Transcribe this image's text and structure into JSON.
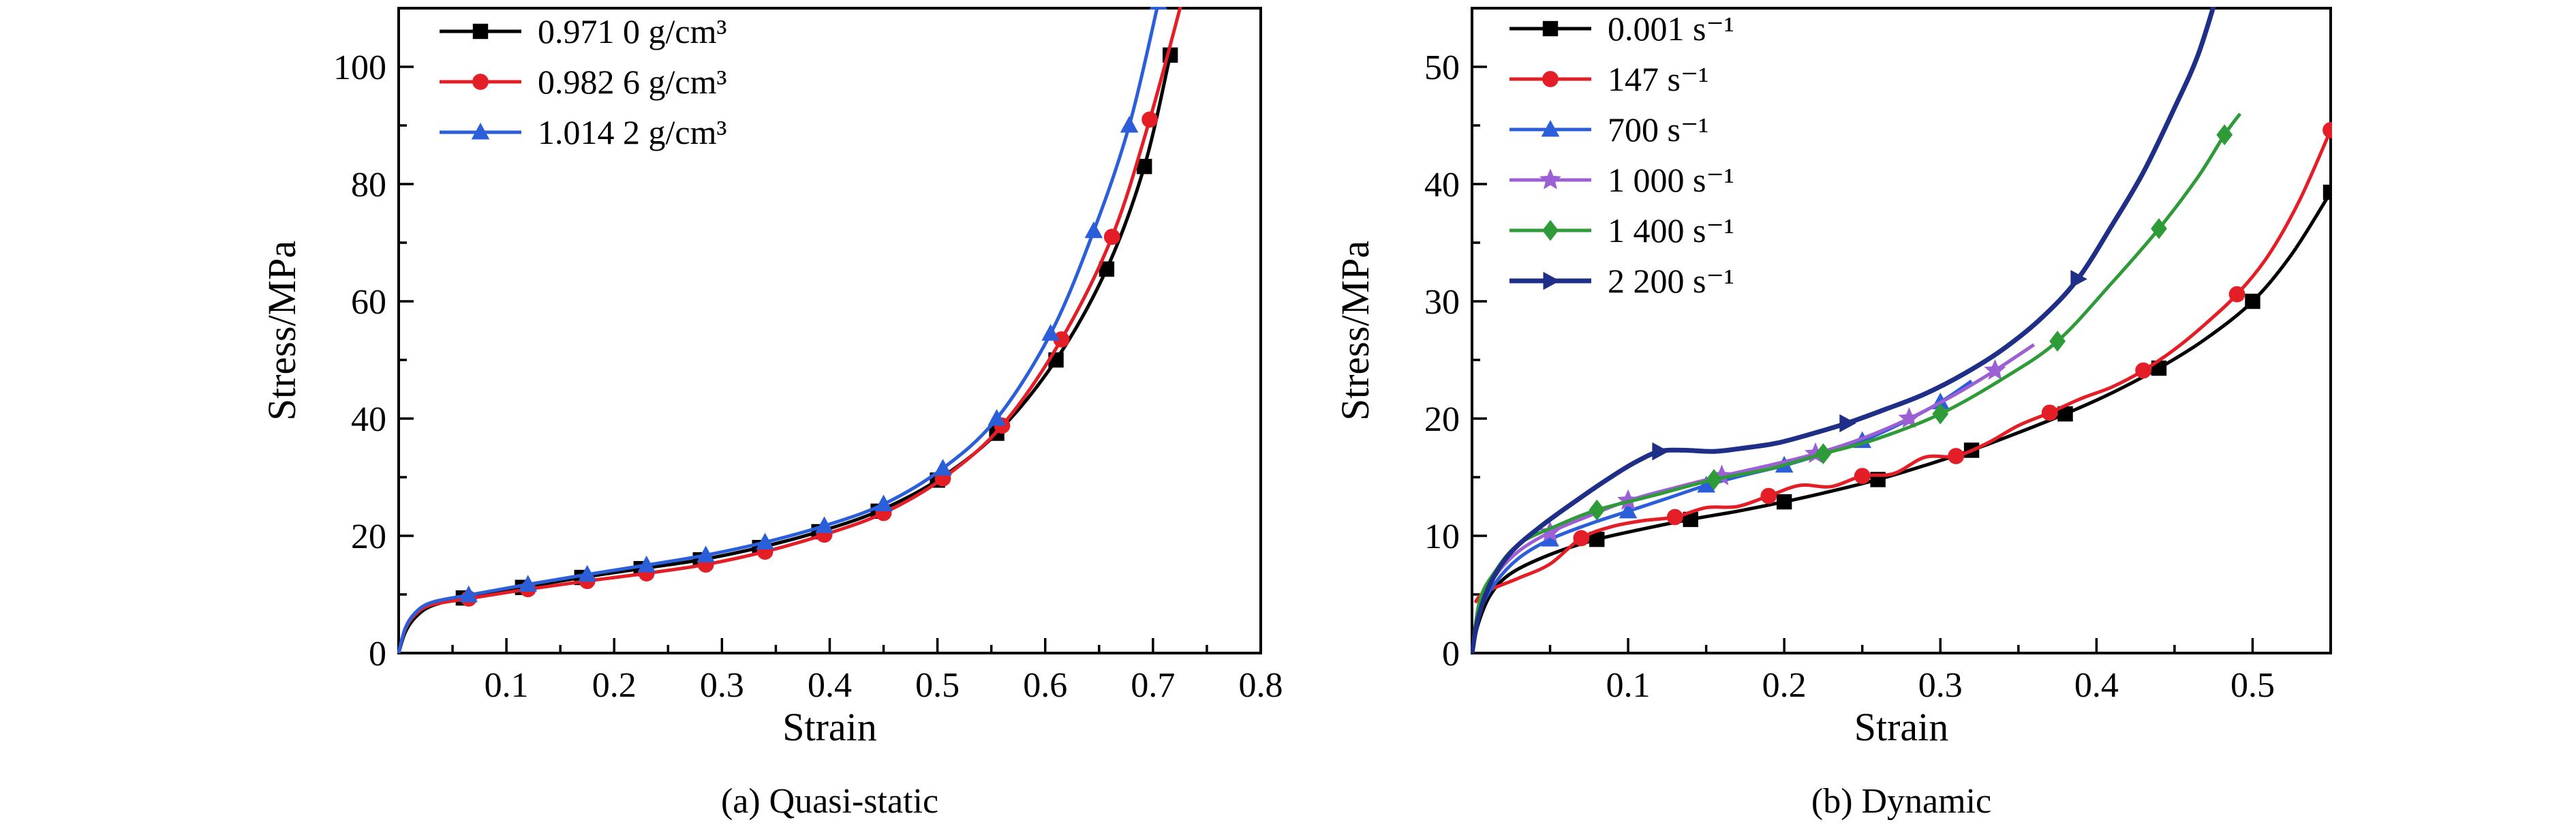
{
  "page": {
    "background": "#ffffff"
  },
  "chart_data": [
    {
      "id": "quasi-static",
      "type": "line",
      "caption": "(a) Quasi-static",
      "xlabel": "Strain",
      "ylabel": "Stress/MPa",
      "xlim": [
        0,
        0.8
      ],
      "ylim": [
        0,
        110
      ],
      "xticks": {
        "values": [
          0.1,
          0.2,
          0.3,
          0.4,
          0.5,
          0.6,
          0.7,
          0.8
        ],
        "labels": [
          "0.1",
          "0.2",
          "0.3",
          "0.4",
          "0.5",
          "0.6",
          "0.7",
          "0.8"
        ]
      },
      "yticks": {
        "values": [
          0,
          20,
          40,
          60,
          80,
          100
        ],
        "labels": [
          "0",
          "20",
          "40",
          "60",
          "80",
          "100"
        ]
      },
      "x_minor_step": 0.05,
      "y_minor_step": 10,
      "legend_position": "top-left",
      "grid": false,
      "series": [
        {
          "name": "0.971 0 g/cm³",
          "color": "#000000",
          "marker": "square",
          "line_width": 5,
          "markers_from": 4,
          "marker_every": 1,
          "x": [
            0,
            0.006,
            0.015,
            0.03,
            0.06,
            0.115,
            0.17,
            0.225,
            0.28,
            0.335,
            0.39,
            0.445,
            0.5,
            0.555,
            0.61,
            0.657,
            0.692,
            0.716
          ],
          "y": [
            0,
            3.5,
            6.0,
            8.0,
            9.4,
            11.2,
            12.9,
            14.4,
            15.9,
            18.0,
            20.7,
            24.2,
            29.5,
            37.5,
            50.0,
            65.5,
            83.0,
            102.0
          ]
        },
        {
          "name": "0.982 6 g/cm³",
          "color": "#e41e26",
          "marker": "circle",
          "line_width": 5,
          "markers_from": 4,
          "marker_every": 1,
          "x": [
            0,
            0.006,
            0.015,
            0.03,
            0.065,
            0.12,
            0.175,
            0.23,
            0.285,
            0.34,
            0.395,
            0.45,
            0.505,
            0.56,
            0.615,
            0.662,
            0.697,
            0.728
          ],
          "y": [
            0,
            4.0,
            6.5,
            8.2,
            9.3,
            10.9,
            12.3,
            13.6,
            15.1,
            17.3,
            20.2,
            23.9,
            29.8,
            38.8,
            53.5,
            71.0,
            91.0,
            112.0
          ]
        },
        {
          "name": "1.014 2 g/cm³",
          "color": "#2b5fd9",
          "marker": "triangle-up",
          "line_width": 5,
          "markers_from": 4,
          "marker_every": 1,
          "x": [
            0,
            0.006,
            0.015,
            0.03,
            0.065,
            0.12,
            0.175,
            0.23,
            0.285,
            0.34,
            0.395,
            0.45,
            0.505,
            0.555,
            0.605,
            0.645,
            0.678,
            0.705
          ],
          "y": [
            0,
            4.2,
            6.8,
            8.6,
            9.9,
            11.7,
            13.4,
            15.0,
            16.7,
            18.9,
            21.7,
            25.4,
            31.5,
            40.0,
            54.5,
            72.0,
            90.0,
            111.0
          ]
        }
      ]
    },
    {
      "id": "dynamic",
      "type": "line",
      "caption": "(b) Dynamic",
      "xlabel": "Strain",
      "ylabel": "Stress/MPa",
      "xlim": [
        0,
        0.55
      ],
      "ylim": [
        0,
        55
      ],
      "xticks": {
        "values": [
          0.1,
          0.2,
          0.3,
          0.4,
          0.5
        ],
        "labels": [
          "0.1",
          "0.2",
          "0.3",
          "0.4",
          "0.5"
        ]
      },
      "yticks": {
        "values": [
          0,
          10,
          20,
          30,
          40,
          50
        ],
        "labels": [
          "0",
          "10",
          "20",
          "30",
          "40",
          "50"
        ]
      },
      "x_minor_step": 0.05,
      "y_minor_step": 5,
      "legend_position": "top-left",
      "grid": false,
      "series": [
        {
          "name": "0.001 s⁻¹",
          "color": "#000000",
          "marker": "square",
          "line_width": 5,
          "markers_from": 5,
          "marker_every": 2,
          "x": [
            0,
            0.004,
            0.012,
            0.025,
            0.05,
            0.08,
            0.11,
            0.14,
            0.17,
            0.2,
            0.23,
            0.26,
            0.29,
            0.32,
            0.35,
            0.38,
            0.41,
            0.44,
            0.47,
            0.5,
            0.525,
            0.55
          ],
          "y": [
            0,
            2.5,
            5.0,
            6.8,
            8.4,
            9.7,
            10.6,
            11.4,
            12.1,
            12.9,
            13.8,
            14.8,
            16.0,
            17.3,
            18.8,
            20.4,
            22.2,
            24.3,
            26.8,
            30.0,
            34.0,
            39.3
          ]
        },
        {
          "name": "147 s⁻¹",
          "color": "#e41e26",
          "marker": "circle",
          "line_width": 5,
          "markers_from": 5,
          "marker_every": 3,
          "x": [
            0.002,
            0.006,
            0.015,
            0.03,
            0.05,
            0.07,
            0.09,
            0.11,
            0.13,
            0.15,
            0.17,
            0.19,
            0.21,
            0.23,
            0.25,
            0.27,
            0.29,
            0.31,
            0.33,
            0.35,
            0.37,
            0.39,
            0.41,
            0.43,
            0.45,
            0.47,
            0.49,
            0.51,
            0.53,
            0.55
          ],
          "y": [
            4.3,
            5.0,
            5.6,
            6.4,
            7.6,
            9.8,
            10.8,
            11.3,
            11.6,
            12.4,
            12.5,
            13.4,
            14.3,
            14.2,
            15.1,
            15.3,
            16.7,
            16.8,
            17.9,
            19.4,
            20.5,
            21.7,
            22.7,
            24.1,
            25.9,
            28.1,
            30.6,
            33.9,
            38.6,
            44.6
          ]
        },
        {
          "name": "700 s⁻¹",
          "color": "#2b5fd9",
          "marker": "triangle-up",
          "line_width": 5,
          "markers_from": 4,
          "marker_every": 2,
          "x": [
            0,
            0.005,
            0.015,
            0.03,
            0.05,
            0.075,
            0.1,
            0.125,
            0.15,
            0.175,
            0.2,
            0.225,
            0.25,
            0.275,
            0.3,
            0.32
          ],
          "y": [
            0,
            3.5,
            6.0,
            8.1,
            9.7,
            11.0,
            12.1,
            13.2,
            14.3,
            15.2,
            16.0,
            17.0,
            18.1,
            19.6,
            21.4,
            23.2
          ]
        },
        {
          "name": "1 000 s⁻¹",
          "color": "#9d5fd4",
          "marker": "star",
          "line_width": 5,
          "markers_from": 4,
          "marker_every": 2,
          "x": [
            0,
            0.005,
            0.015,
            0.03,
            0.05,
            0.075,
            0.1,
            0.13,
            0.16,
            0.19,
            0.22,
            0.25,
            0.28,
            0.31,
            0.335,
            0.36
          ],
          "y": [
            0,
            4.0,
            6.6,
            8.7,
            10.3,
            11.7,
            13.0,
            14.1,
            15.1,
            16.0,
            17.0,
            18.3,
            20.0,
            22.1,
            24.1,
            26.3
          ]
        },
        {
          "name": "1 400 s⁻¹",
          "color": "#2e9b38",
          "marker": "diamond",
          "line_width": 5,
          "markers_from": 5,
          "marker_every": 2,
          "x": [
            0,
            0.005,
            0.015,
            0.03,
            0.055,
            0.08,
            0.115,
            0.155,
            0.19,
            0.225,
            0.26,
            0.3,
            0.34,
            0.375,
            0.41,
            0.44,
            0.465,
            0.482,
            0.492
          ],
          "y": [
            0,
            4.5,
            7.0,
            9.3,
            10.9,
            12.2,
            13.4,
            14.8,
            15.7,
            17.0,
            18.3,
            20.4,
            23.4,
            26.6,
            31.6,
            36.2,
            40.6,
            44.2,
            46.0
          ]
        },
        {
          "name": "2 200 s⁻¹",
          "color": "#1f2f87",
          "marker": "triangle-right",
          "line_width": 7,
          "markers_from": 8,
          "marker_every": 6,
          "x": [
            0,
            0.004,
            0.012,
            0.025,
            0.045,
            0.07,
            0.09,
            0.105,
            0.12,
            0.135,
            0.155,
            0.175,
            0.195,
            0.215,
            0.24,
            0.265,
            0.29,
            0.315,
            0.34,
            0.365,
            0.388,
            0.41,
            0.43,
            0.45,
            0.465,
            0.478
          ],
          "y": [
            0,
            3.0,
            6.0,
            8.6,
            10.9,
            13.3,
            15.1,
            16.3,
            17.2,
            17.3,
            17.2,
            17.5,
            17.9,
            18.6,
            19.6,
            20.8,
            22.1,
            23.8,
            25.9,
            28.6,
            31.9,
            36.5,
            41.0,
            46.5,
            51.0,
            56.5
          ]
        }
      ]
    }
  ]
}
